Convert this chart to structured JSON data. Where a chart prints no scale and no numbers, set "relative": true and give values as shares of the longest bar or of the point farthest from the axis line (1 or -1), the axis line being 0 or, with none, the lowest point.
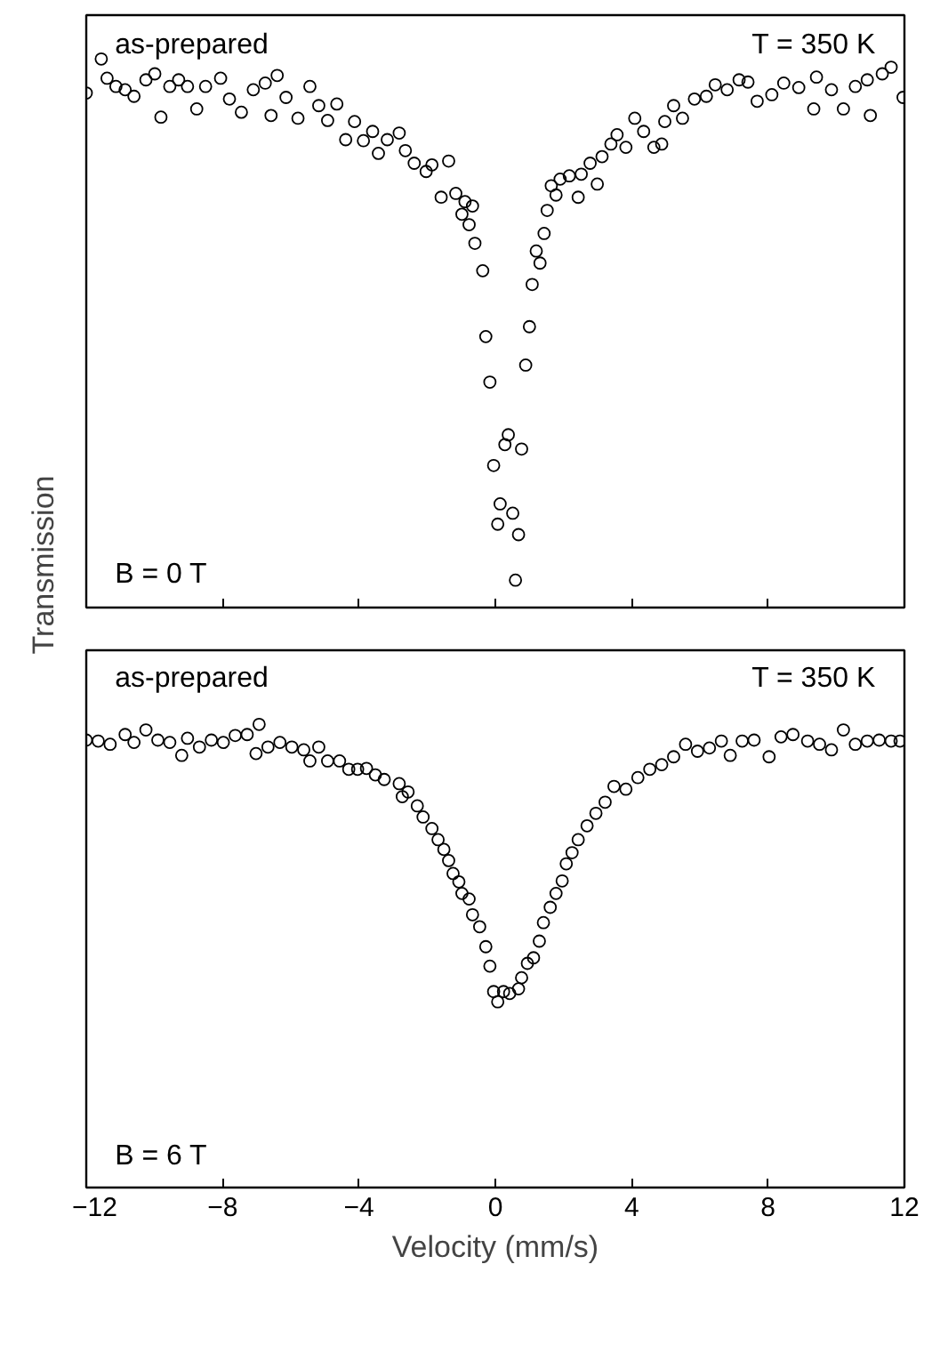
{
  "chart_data": [
    {
      "type": "scatter",
      "relative": true,
      "ylabel": "Transmission",
      "xlim": [
        -12,
        12
      ],
      "xticks": [
        -12,
        -8,
        -4,
        0,
        4,
        8,
        12
      ],
      "tick_labels": false,
      "grid": false,
      "marker": "circle",
      "annotations": [
        "as-prepared",
        "T = 350 K",
        "B = 0 T"
      ],
      "x": [
        -12.0,
        -11.56,
        -11.39,
        -11.13,
        -10.86,
        -10.6,
        -10.25,
        -9.99,
        -9.81,
        -9.55,
        -9.29,
        -9.03,
        -8.76,
        -8.5,
        -8.06,
        -7.8,
        -7.45,
        -7.1,
        -6.75,
        -6.4,
        -6.58,
        -6.14,
        -5.79,
        -5.44,
        -5.18,
        -4.92,
        -4.65,
        -4.39,
        -4.13,
        -3.87,
        -3.6,
        -3.43,
        -3.17,
        -2.82,
        -2.64,
        -2.38,
        -2.03,
        -1.86,
        -1.59,
        -1.37,
        -1.16,
        -0.89,
        -0.67,
        -0.98,
        -0.77,
        -0.6,
        -0.37,
        -0.28,
        -0.16,
        -0.05,
        0.07,
        0.14,
        0.28,
        0.38,
        0.51,
        0.59,
        0.68,
        0.77,
        0.89,
        1.0,
        1.08,
        1.2,
        1.31,
        1.43,
        1.52,
        1.64,
        1.78,
        1.9,
        2.17,
        2.43,
        2.52,
        2.78,
        2.99,
        3.13,
        3.39,
        3.57,
        3.83,
        4.09,
        4.35,
        4.65,
        4.88,
        4.97,
        5.23,
        5.49,
        5.84,
        6.19,
        6.45,
        6.8,
        7.15,
        7.41,
        7.68,
        8.11,
        8.46,
        8.9,
        9.34,
        9.42,
        9.86,
        10.21,
        10.56,
        11.0,
        10.91,
        11.35,
        11.61,
        11.96
      ],
      "series": [
        {
          "color": "#000000",
          "values": [
            0.938,
            1.0,
            0.965,
            0.95,
            0.944,
            0.932,
            0.962,
            0.973,
            0.894,
            0.95,
            0.962,
            0.95,
            0.909,
            0.95,
            0.965,
            0.927,
            0.903,
            0.944,
            0.956,
            0.97,
            0.897,
            0.93,
            0.892,
            0.95,
            0.915,
            0.888,
            0.918,
            0.853,
            0.886,
            0.851,
            0.868,
            0.828,
            0.853,
            0.865,
            0.833,
            0.81,
            0.795,
            0.807,
            0.748,
            0.814,
            0.755,
            0.74,
            0.732,
            0.717,
            0.698,
            0.664,
            0.614,
            0.494,
            0.411,
            0.259,
            0.152,
            0.189,
            0.297,
            0.315,
            0.172,
            0.05,
            0.133,
            0.289,
            0.442,
            0.512,
            0.589,
            0.65,
            0.628,
            0.682,
            0.724,
            0.769,
            0.752,
            0.781,
            0.787,
            0.748,
            0.79,
            0.81,
            0.772,
            0.822,
            0.845,
            0.862,
            0.839,
            0.892,
            0.868,
            0.839,
            0.845,
            0.886,
            0.915,
            0.892,
            0.927,
            0.932,
            0.953,
            0.944,
            0.962,
            0.958,
            0.923,
            0.935,
            0.956,
            0.948,
            0.909,
            0.967,
            0.944,
            0.909,
            0.95,
            0.897,
            0.962,
            0.973,
            0.985,
            0.93
          ]
        }
      ]
    },
    {
      "type": "scatter",
      "relative": true,
      "xlabel": "Velocity (mm/s)",
      "xlim": [
        -12,
        12
      ],
      "xticks": [
        -12,
        -8,
        -4,
        0,
        4,
        8,
        12
      ],
      "tick_labels": "x",
      "grid": false,
      "marker": "circle",
      "annotations": [
        "as-prepared",
        "T = 350 K",
        "B = 6 T"
      ],
      "x": [
        -12.0,
        -11.65,
        -11.3,
        -10.86,
        -10.6,
        -10.25,
        -9.9,
        -9.55,
        -9.2,
        -9.03,
        -8.68,
        -8.33,
        -7.98,
        -7.63,
        -7.28,
        -7.02,
        -6.93,
        -6.67,
        -6.32,
        -5.97,
        -5.62,
        -5.44,
        -5.18,
        -4.92,
        -4.57,
        -4.3,
        -4.04,
        -3.78,
        -3.52,
        -3.26,
        -2.82,
        -2.73,
        -2.56,
        -2.29,
        -2.12,
        -1.86,
        -1.68,
        -1.51,
        -1.37,
        -1.24,
        -1.07,
        -0.98,
        -0.77,
        -0.67,
        -0.46,
        -0.28,
        -0.16,
        -0.05,
        0.07,
        0.24,
        0.42,
        0.68,
        0.77,
        0.94,
        1.12,
        1.29,
        1.41,
        1.61,
        1.78,
        1.96,
        2.08,
        2.25,
        2.43,
        2.69,
        2.95,
        3.22,
        3.48,
        3.83,
        4.18,
        4.53,
        4.88,
        5.23,
        5.58,
        5.93,
        6.28,
        6.63,
        6.89,
        7.24,
        7.59,
        8.03,
        8.38,
        8.73,
        9.16,
        9.51,
        9.86,
        10.21,
        10.56,
        10.91,
        11.26,
        11.61,
        11.87
      ],
      "series": [
        {
          "color": "#000000",
          "values": [
            0.966,
            0.964,
            0.957,
            0.978,
            0.961,
            0.988,
            0.966,
            0.961,
            0.933,
            0.97,
            0.951,
            0.966,
            0.961,
            0.976,
            0.978,
            0.937,
            1.0,
            0.951,
            0.961,
            0.951,
            0.945,
            0.921,
            0.951,
            0.921,
            0.921,
            0.903,
            0.903,
            0.905,
            0.891,
            0.881,
            0.872,
            0.844,
            0.854,
            0.824,
            0.8,
            0.775,
            0.751,
            0.73,
            0.706,
            0.678,
            0.66,
            0.635,
            0.623,
            0.589,
            0.563,
            0.52,
            0.478,
            0.423,
            0.401,
            0.423,
            0.419,
            0.429,
            0.453,
            0.484,
            0.496,
            0.532,
            0.572,
            0.605,
            0.635,
            0.662,
            0.699,
            0.723,
            0.751,
            0.781,
            0.808,
            0.832,
            0.866,
            0.86,
            0.885,
            0.903,
            0.913,
            0.93,
            0.957,
            0.942,
            0.949,
            0.964,
            0.933,
            0.964,
            0.966,
            0.93,
            0.973,
            0.978,
            0.964,
            0.957,
            0.945,
            0.988,
            0.957,
            0.964,
            0.966,
            0.964,
            0.964
          ]
        }
      ]
    }
  ]
}
